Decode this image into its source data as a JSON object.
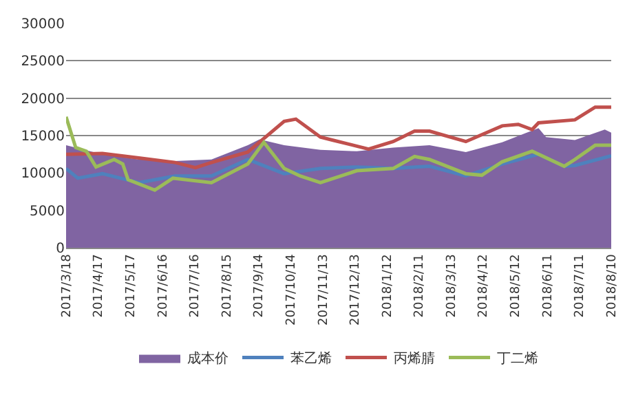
{
  "chart_data": {
    "type": "line",
    "xlim": [
      "2017-03-18",
      "2018-08-10"
    ],
    "xticks": [
      {
        "value": "2017-03-18",
        "label": "2017/3/18"
      },
      {
        "value": "2017-04-17",
        "label": "2017/4/17"
      },
      {
        "value": "2017-05-17",
        "label": "2017/5/17"
      },
      {
        "value": "2017-06-16",
        "label": "2017/6/16"
      },
      {
        "value": "2017-07-16",
        "label": "2017/7/16"
      },
      {
        "value": "2017-08-15",
        "label": "2017/8/15"
      },
      {
        "value": "2017-09-14",
        "label": "2017/9/14"
      },
      {
        "value": "2017-10-14",
        "label": "2017/10/14"
      },
      {
        "value": "2017-11-13",
        "label": "2017/11/13"
      },
      {
        "value": "2017-12-13",
        "label": "2017/12/13"
      },
      {
        "value": "2018-01-12",
        "label": "2018/1/12"
      },
      {
        "value": "2018-02-11",
        "label": "2018/2/11"
      },
      {
        "value": "2018-03-13",
        "label": "2018/3/13"
      },
      {
        "value": "2018-04-12",
        "label": "2018/4/12"
      },
      {
        "value": "2018-05-12",
        "label": "2018/5/12"
      },
      {
        "value": "2018-06-11",
        "label": "2018/6/11"
      },
      {
        "value": "2018-07-11",
        "label": "2018/7/11"
      },
      {
        "value": "2018-08-10",
        "label": "2018/8/10"
      }
    ],
    "ylim": [
      0,
      30000
    ],
    "yticks": [
      0,
      5000,
      10000,
      15000,
      20000,
      25000,
      30000
    ],
    "grid": "y",
    "legend": "bottom",
    "series": [
      {
        "name": "成本价",
        "type": "area",
        "color": "#8064a2",
        "x": [
          "2017-03-18",
          "2017-04-21",
          "2017-05-25",
          "2017-06-28",
          "2017-08-01",
          "2017-09-04",
          "2017-09-15",
          "2017-10-08",
          "2017-11-11",
          "2017-12-15",
          "2018-01-18",
          "2018-02-21",
          "2018-03-27",
          "2018-04-30",
          "2018-06-03",
          "2018-06-10",
          "2018-07-07",
          "2018-08-04",
          "2018-08-10"
        ],
        "values": [
          13700,
          12500,
          11800,
          11600,
          11800,
          13700,
          14500,
          13700,
          13100,
          12900,
          13400,
          13700,
          12800,
          14100,
          16000,
          14800,
          14400,
          15800,
          15400
        ]
      },
      {
        "name": "苯乙烯",
        "color": "#4f81bd",
        "x": [
          "2017-03-18",
          "2017-03-29",
          "2017-04-21",
          "2017-05-25",
          "2017-06-28",
          "2017-08-01",
          "2017-09-04",
          "2017-10-08",
          "2017-11-11",
          "2017-12-15",
          "2018-01-18",
          "2018-02-21",
          "2018-03-27",
          "2018-04-30",
          "2018-06-03",
          "2018-06-27",
          "2018-07-07",
          "2018-08-10"
        ],
        "values": [
          10600,
          9300,
          9900,
          8700,
          9600,
          9600,
          11800,
          9900,
          10600,
          10800,
          10600,
          10900,
          9600,
          11200,
          12500,
          10900,
          11000,
          12300
        ]
      },
      {
        "name": "丙烯腈",
        "color": "#c0504d",
        "x": [
          "2017-03-18",
          "2017-04-21",
          "2017-05-25",
          "2017-06-28",
          "2017-07-17",
          "2017-08-01",
          "2017-09-04",
          "2017-10-08",
          "2017-10-19",
          "2017-11-11",
          "2017-11-22",
          "2017-12-26",
          "2018-01-18",
          "2018-02-07",
          "2018-02-21",
          "2018-03-27",
          "2018-04-30",
          "2018-05-15",
          "2018-05-28",
          "2018-06-03",
          "2018-07-07",
          "2018-07-26",
          "2018-08-10"
        ],
        "values": [
          12500,
          12600,
          12000,
          11400,
          10700,
          11400,
          12800,
          16900,
          17200,
          14800,
          14400,
          13200,
          14200,
          15600,
          15600,
          14200,
          16300,
          16500,
          15800,
          16700,
          17100,
          18800,
          18800
        ]
      },
      {
        "name": "丁二烯",
        "color": "#9bbb59",
        "x": [
          "2017-03-18",
          "2017-03-27",
          "2017-04-06",
          "2017-04-15",
          "2017-05-02",
          "2017-05-10",
          "2017-05-15",
          "2017-06-09",
          "2017-06-26",
          "2017-08-01",
          "2017-09-04",
          "2017-09-19",
          "2017-10-08",
          "2017-10-23",
          "2017-11-11",
          "2017-12-15",
          "2018-01-18",
          "2018-02-07",
          "2018-02-21",
          "2018-03-27",
          "2018-04-11",
          "2018-04-30",
          "2018-05-28",
          "2018-06-27",
          "2018-07-07",
          "2018-07-26",
          "2018-08-10"
        ],
        "values": [
          17500,
          13400,
          12900,
          10800,
          11800,
          11200,
          9100,
          7700,
          9300,
          8700,
          11200,
          14100,
          10600,
          9600,
          8700,
          10300,
          10600,
          12200,
          11800,
          9900,
          9700,
          11500,
          12900,
          10900,
          11800,
          13700,
          13700
        ]
      }
    ]
  }
}
